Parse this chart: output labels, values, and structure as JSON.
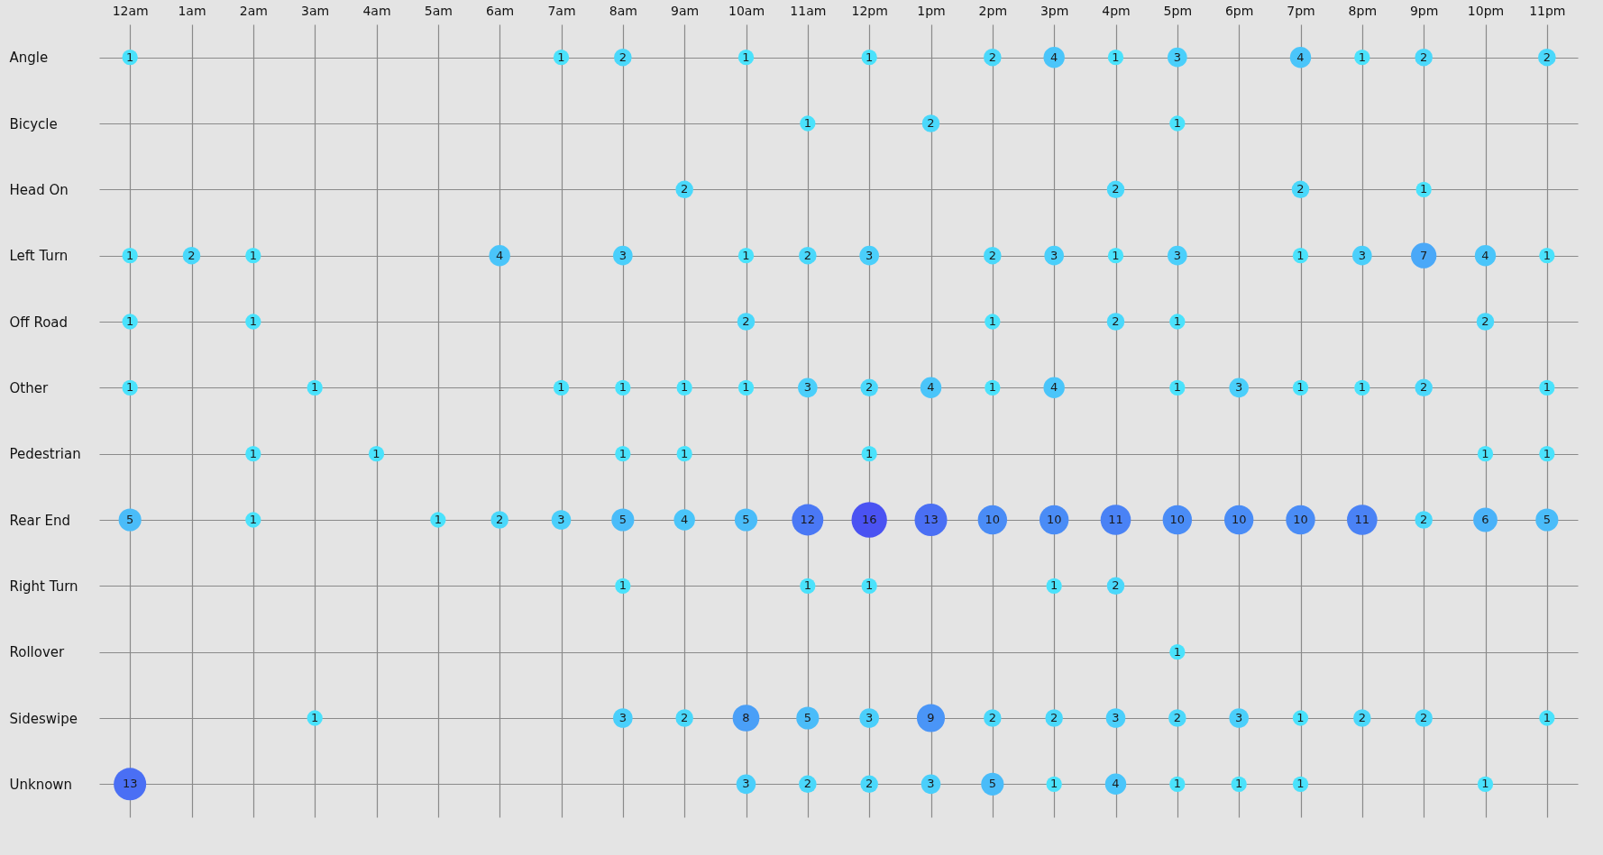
{
  "chart_data": {
    "type": "heatmap",
    "grid": true,
    "data_labels": true,
    "categories": [
      "12am",
      "1am",
      "2am",
      "3am",
      "4am",
      "5am",
      "6am",
      "7am",
      "8am",
      "9am",
      "10am",
      "11am",
      "12pm",
      "1pm",
      "2pm",
      "3pm",
      "4pm",
      "5pm",
      "6pm",
      "7pm",
      "8pm",
      "9pm",
      "10pm",
      "11pm"
    ],
    "y_categories": [
      "Angle",
      "Bicycle",
      "Head On",
      "Left Turn",
      "Off Road",
      "Other",
      "Pedestrian",
      "Rear End",
      "Right Turn",
      "Rollover",
      "Sideswipe",
      "Unknown"
    ],
    "cells": [
      [
        1,
        null,
        null,
        null,
        null,
        null,
        null,
        1,
        2,
        null,
        1,
        null,
        1,
        null,
        2,
        4,
        1,
        3,
        null,
        4,
        1,
        2,
        null,
        2
      ],
      [
        null,
        null,
        null,
        null,
        null,
        null,
        null,
        null,
        null,
        null,
        null,
        1,
        null,
        2,
        null,
        null,
        null,
        1,
        null,
        null,
        null,
        null,
        null,
        null
      ],
      [
        null,
        null,
        null,
        null,
        null,
        null,
        null,
        null,
        null,
        2,
        null,
        null,
        null,
        null,
        null,
        null,
        2,
        null,
        null,
        2,
        null,
        1,
        null,
        null
      ],
      [
        1,
        2,
        1,
        null,
        null,
        null,
        4,
        null,
        3,
        null,
        1,
        2,
        3,
        null,
        2,
        3,
        1,
        3,
        null,
        1,
        3,
        7,
        4,
        1
      ],
      [
        1,
        null,
        1,
        null,
        null,
        null,
        null,
        null,
        null,
        null,
        2,
        null,
        null,
        null,
        1,
        null,
        2,
        1,
        null,
        null,
        null,
        null,
        2,
        null
      ],
      [
        1,
        null,
        null,
        1,
        null,
        null,
        null,
        1,
        1,
        1,
        1,
        3,
        2,
        4,
        1,
        4,
        null,
        1,
        3,
        1,
        1,
        2,
        null,
        1
      ],
      [
        null,
        null,
        1,
        null,
        1,
        null,
        null,
        null,
        1,
        1,
        null,
        null,
        1,
        null,
        null,
        null,
        null,
        null,
        null,
        null,
        null,
        null,
        1,
        1
      ],
      [
        5,
        null,
        1,
        null,
        null,
        1,
        2,
        3,
        5,
        4,
        5,
        12,
        16,
        13,
        10,
        10,
        11,
        10,
        10,
        10,
        11,
        2,
        6,
        5
      ],
      [
        null,
        null,
        null,
        null,
        null,
        null,
        null,
        null,
        1,
        null,
        null,
        1,
        1,
        null,
        null,
        1,
        2,
        null,
        null,
        null,
        null,
        null,
        null,
        null
      ],
      [
        null,
        null,
        null,
        null,
        null,
        null,
        null,
        null,
        null,
        null,
        null,
        null,
        null,
        null,
        null,
        null,
        null,
        1,
        null,
        null,
        null,
        null,
        null,
        null
      ],
      [
        null,
        null,
        null,
        1,
        null,
        null,
        null,
        null,
        3,
        2,
        8,
        5,
        3,
        9,
        2,
        2,
        3,
        2,
        3,
        1,
        2,
        2,
        null,
        1
      ],
      [
        13,
        null,
        null,
        null,
        null,
        null,
        null,
        null,
        null,
        null,
        3,
        2,
        2,
        3,
        5,
        1,
        4,
        1,
        1,
        1,
        null,
        null,
        1,
        null
      ]
    ]
  }
}
